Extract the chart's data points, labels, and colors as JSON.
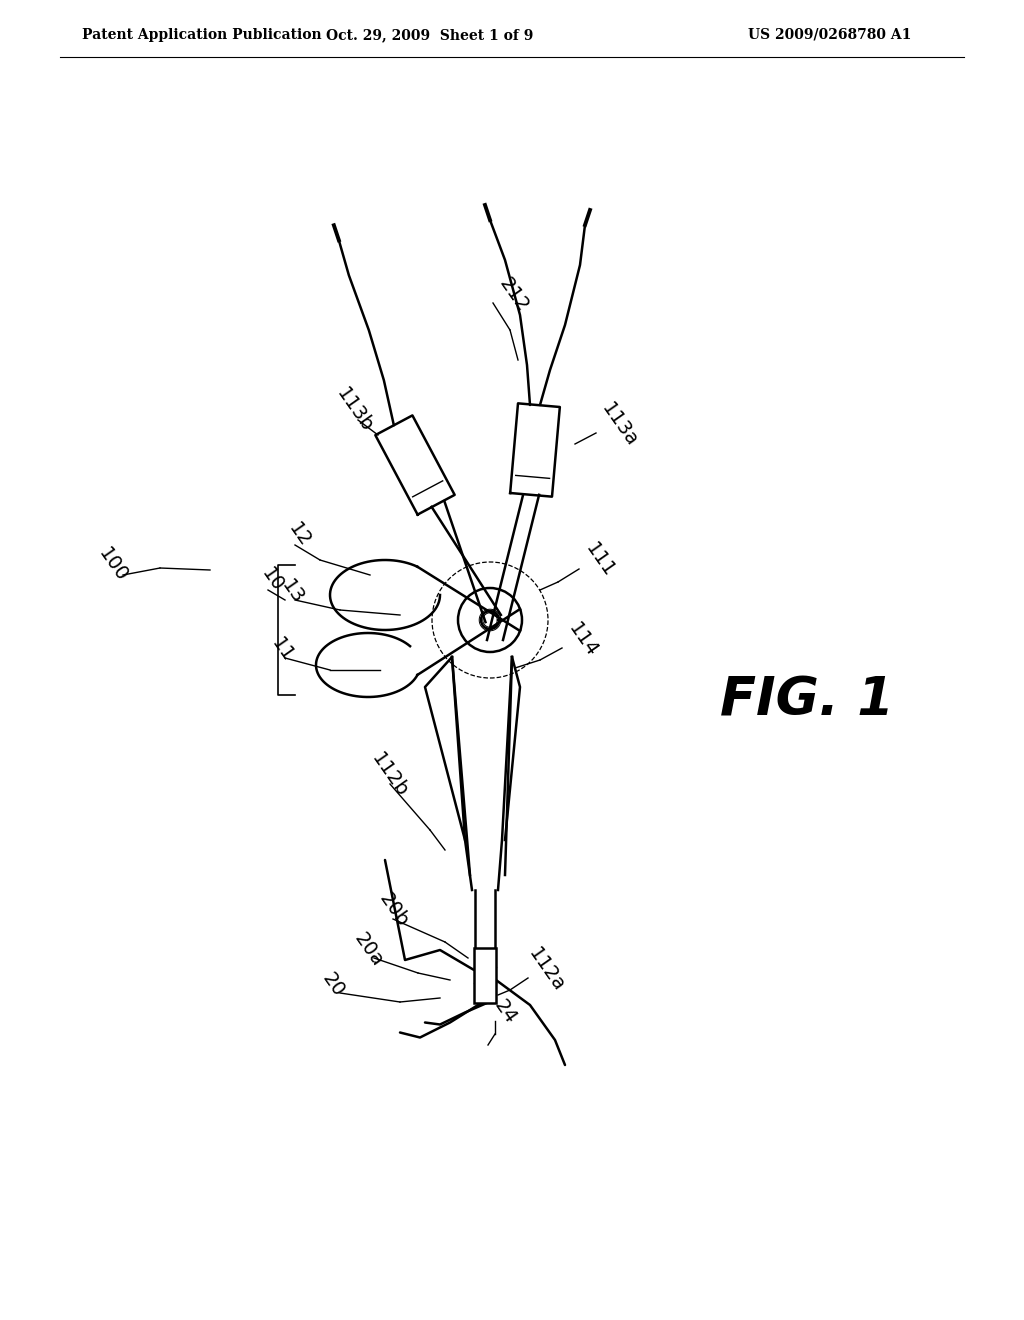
{
  "bg_color": "#ffffff",
  "line_color": "#000000",
  "header_left": "Patent Application Publication",
  "header_mid": "Oct. 29, 2009  Sheet 1 of 9",
  "header_right": "US 2009/0268780 A1",
  "fig_label": "FIG. 1",
  "ref_100": "100",
  "ref_10": "10",
  "ref_11": "11",
  "ref_12": "12",
  "ref_13": "13",
  "ref_20": "20",
  "ref_20a": "20a",
  "ref_20b": "20b",
  "ref_24": "24",
  "ref_111": "111",
  "ref_112a": "112a",
  "ref_112b": "112b",
  "ref_113a": "113a",
  "ref_113b": "113b",
  "ref_114": "114",
  "ref_212": "212",
  "lw_main": 1.8,
  "lw_thick": 3.0,
  "lw_thin": 1.0,
  "label_fontsize": 14,
  "header_fontsize": 10,
  "fig_fontsize": 38
}
